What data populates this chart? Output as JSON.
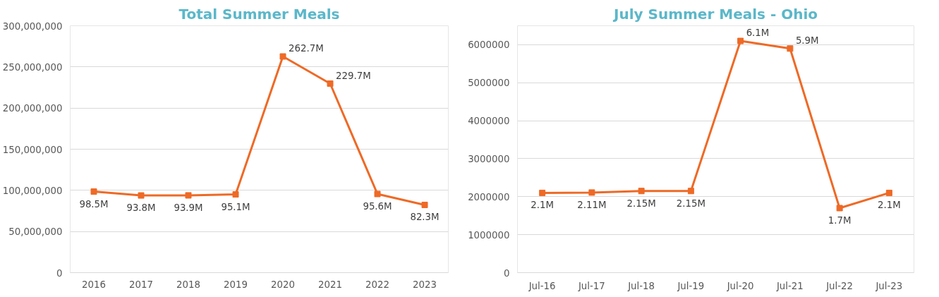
{
  "chart_data": [
    {
      "type": "line",
      "title": "Total Summer Meals",
      "categories": [
        "2016",
        "2017",
        "2018",
        "2019",
        "2020",
        "2021",
        "2022",
        "2023"
      ],
      "series": [
        {
          "color": "#ee6a26",
          "values": [
            98500000,
            93800000,
            93900000,
            95100000,
            262700000,
            229700000,
            95600000,
            82300000
          ],
          "value_labels": [
            "98.5M",
            "93.8M",
            "93.9M",
            "95.1M",
            "262.7M",
            "229.7M",
            "95.6M",
            "82.3M"
          ]
        }
      ],
      "ylim": [
        0,
        300000000
      ],
      "yticks": [
        {
          "value": 0,
          "label": "0"
        },
        {
          "value": 50000000,
          "label": "50,000,000"
        },
        {
          "value": 100000000,
          "label": "100,000,000"
        },
        {
          "value": 150000000,
          "label": "150,000,000"
        },
        {
          "value": 200000000,
          "label": "200,000,000"
        },
        {
          "value": 250000000,
          "label": "250,000,000"
        },
        {
          "value": 300000000,
          "label": "300,000,000"
        }
      ],
      "grid": "y",
      "marker": "square",
      "line_style": "solid"
    },
    {
      "type": "line",
      "title": "July Summer Meals - Ohio",
      "categories": [
        "Jul-16",
        "Jul-17",
        "Jul-18",
        "Jul-19",
        "Jul-20",
        "Jul-21",
        "Jul-22",
        "Jul-23"
      ],
      "series": [
        {
          "color": "#ee6a26",
          "values": [
            2100000,
            2110000,
            2150000,
            2150000,
            6100000,
            5900000,
            1700000,
            2100000
          ],
          "value_labels": [
            "2.1M",
            "2.11M",
            "2.15M",
            "2.15M",
            "6.1M",
            "5.9M",
            "1.7M",
            "2.1M"
          ]
        }
      ],
      "ylim": [
        0,
        6500000
      ],
      "yticks": [
        0,
        1000000,
        2000000,
        3000000,
        4000000,
        5000000,
        6000000
      ],
      "grid": "y",
      "marker": "square",
      "line_style": "solid"
    }
  ]
}
